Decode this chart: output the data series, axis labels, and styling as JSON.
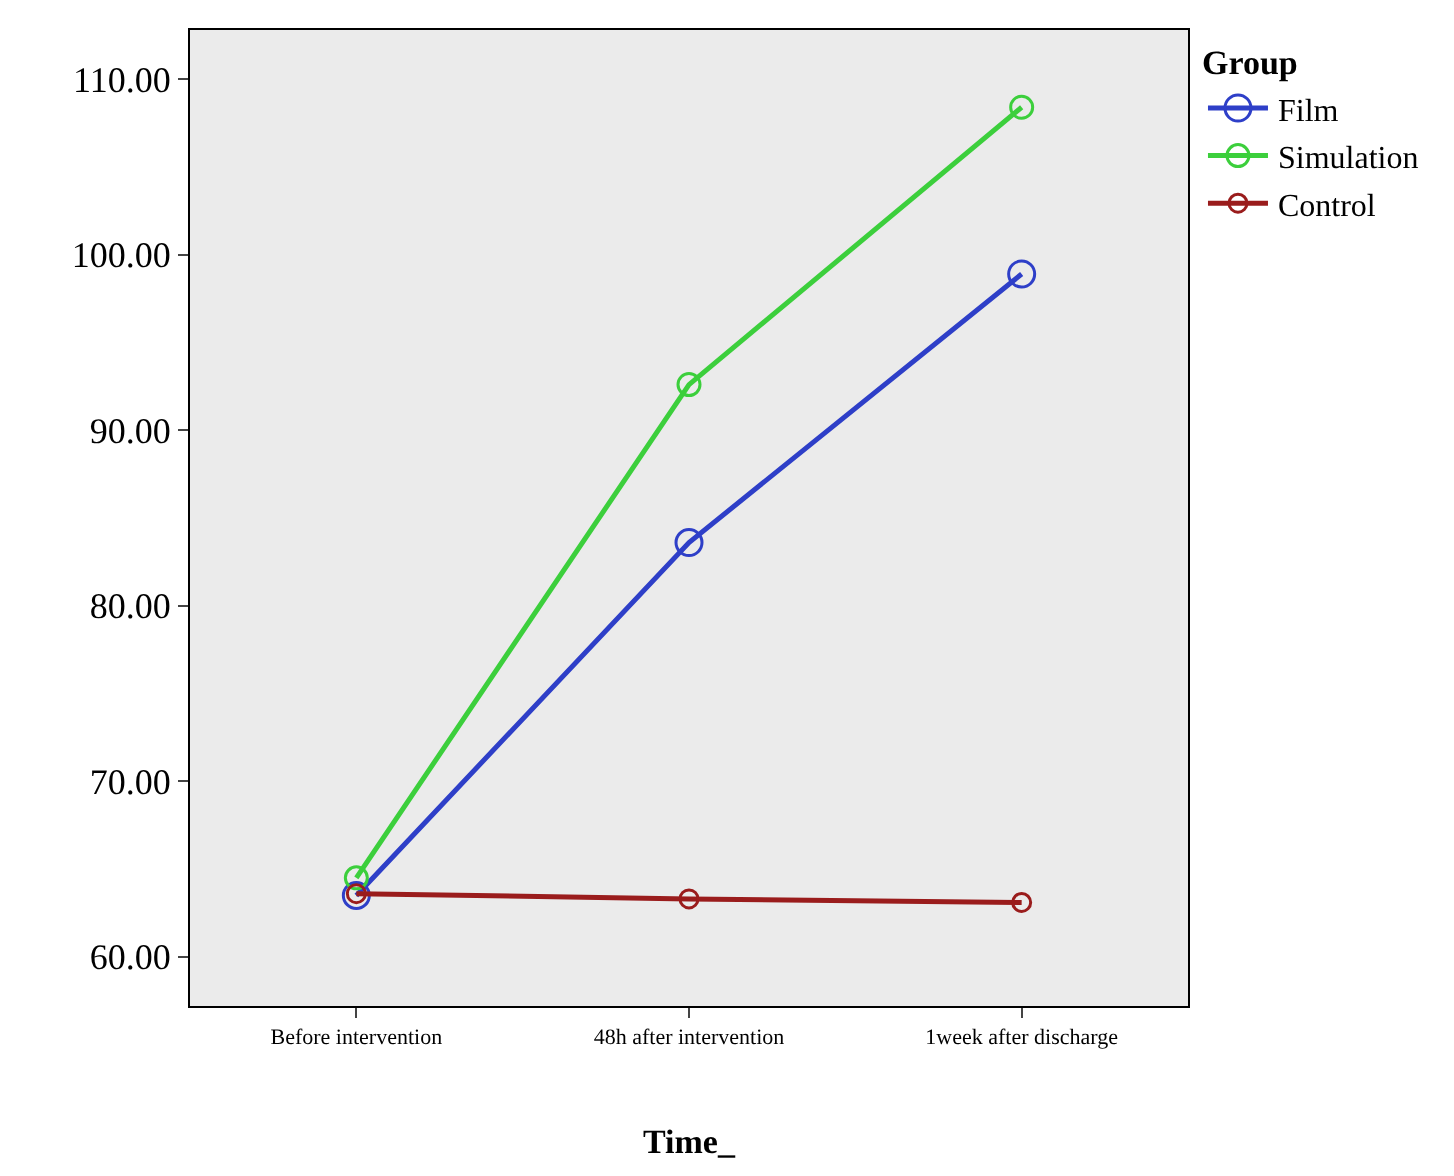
{
  "chart_data": {
    "type": "line",
    "xlabel": "Time_",
    "legend_title": "Group",
    "categories": [
      "Before intervention",
      "48h after intervention",
      "1week after discharge"
    ],
    "series": [
      {
        "name": "Film",
        "color": "#2e3fc8",
        "values": [
          63.5,
          83.6,
          98.9
        ]
      },
      {
        "name": "Simulation",
        "color": "#3ccf3c",
        "values": [
          64.5,
          92.6,
          108.4
        ]
      },
      {
        "name": "Control",
        "color": "#9a1c1c",
        "values": [
          63.6,
          63.3,
          63.1
        ]
      }
    ],
    "ylim": [
      57.2,
      112.8
    ],
    "yticks": [
      {
        "value": 60,
        "label": "60.00"
      },
      {
        "value": 70,
        "label": "70.00"
      },
      {
        "value": 80,
        "label": "80.00"
      },
      {
        "value": 90,
        "label": "90.00"
      },
      {
        "value": 100,
        "label": "100.00"
      },
      {
        "value": 110,
        "label": "110.00"
      }
    ],
    "marker": "circle",
    "line_style": "solid",
    "grid": false,
    "legend": "top right"
  }
}
